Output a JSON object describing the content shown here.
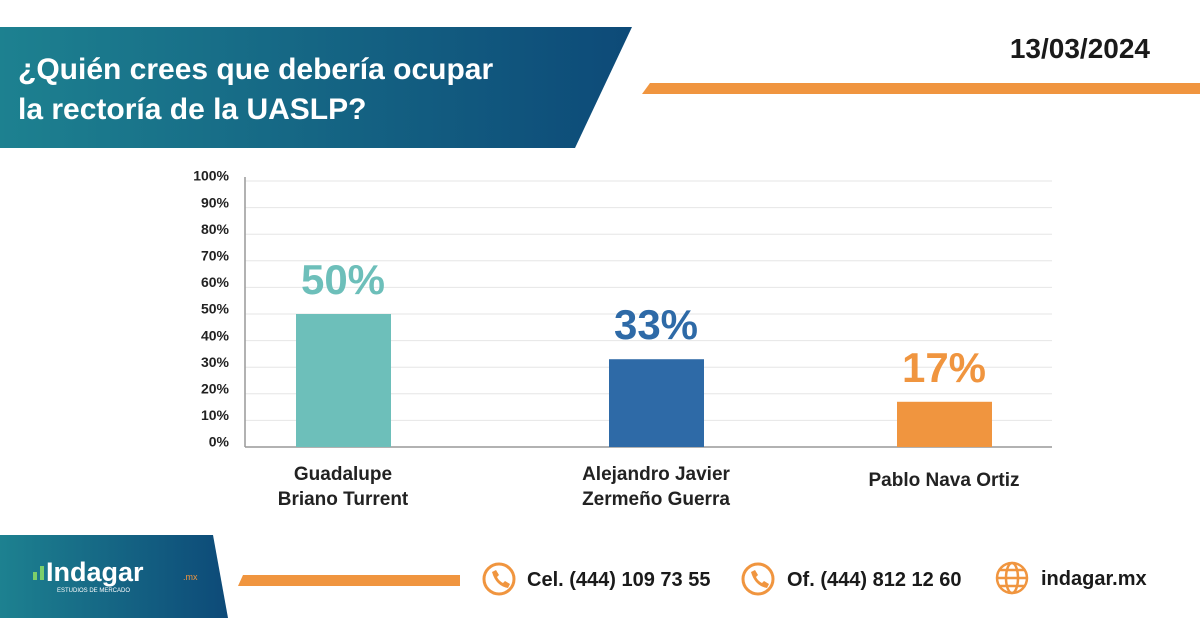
{
  "header": {
    "title": "¿Quién crees que debería ocupar\nla rectoría de la UASLP?",
    "date": "13/03/2024"
  },
  "chart_data": {
    "type": "bar",
    "categories": [
      "Guadalupe\nBriano Turrent",
      "Alejandro Javier\nZermeño Guerra",
      "Pablo Nava Ortiz"
    ],
    "values": [
      50,
      33,
      17
    ],
    "value_labels": [
      "50%",
      "33%",
      "17%"
    ],
    "colors": [
      "#6dbfba",
      "#2e6aa7",
      "#f0953f"
    ],
    "ylim": [
      0,
      100
    ],
    "yticks": [
      {
        "value": 0,
        "label": "0%"
      },
      {
        "value": 10,
        "label": "10%"
      },
      {
        "value": 20,
        "label": "20%"
      },
      {
        "value": 30,
        "label": "30%"
      },
      {
        "value": 40,
        "label": "40%"
      },
      {
        "value": 50,
        "label": "50%"
      },
      {
        "value": 60,
        "label": "60%"
      },
      {
        "value": 70,
        "label": "70%"
      },
      {
        "value": 80,
        "label": "80%"
      },
      {
        "value": 90,
        "label": "90%"
      },
      {
        "value": 100,
        "label": "100%"
      }
    ],
    "grid": true
  },
  "footer": {
    "brand": "Indagar",
    "brand_suffix": ".mx",
    "brand_tagline": "ESTUDIOS DE MERCADO",
    "cel": "Cel. (444) 109 73 55",
    "office": "Of. (444) 812 12 60",
    "web": "indagar.mx"
  }
}
